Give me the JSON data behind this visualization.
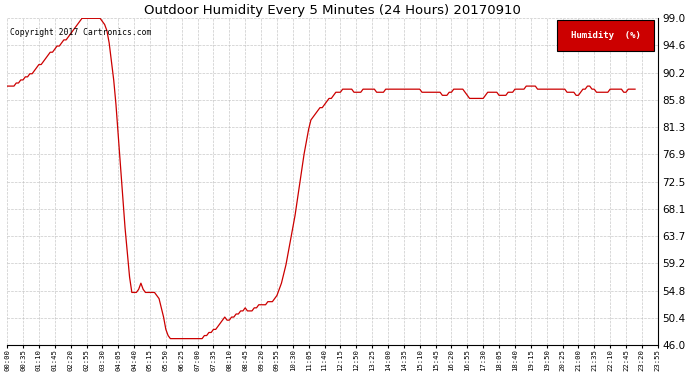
{
  "title": "Outdoor Humidity Every 5 Minutes (24 Hours) 20170910",
  "copyright_text": "Copyright 2017 Cartronics.com",
  "legend_label": "Humidity  (%)",
  "legend_bg": "#cc0000",
  "legend_text_color": "#ffffff",
  "line_color": "#cc0000",
  "bg_color": "#ffffff",
  "grid_color": "#bbbbbb",
  "ylim": [
    46.0,
    99.0
  ],
  "yticks": [
    46.0,
    50.4,
    54.8,
    59.2,
    63.7,
    68.1,
    72.5,
    76.9,
    81.3,
    85.8,
    90.2,
    94.6,
    99.0
  ],
  "xtick_labels": [
    "00:00",
    "00:35",
    "01:10",
    "01:45",
    "02:20",
    "02:55",
    "03:30",
    "04:05",
    "04:40",
    "05:15",
    "05:50",
    "06:25",
    "07:00",
    "07:35",
    "08:10",
    "08:45",
    "09:20",
    "09:55",
    "10:30",
    "11:05",
    "11:40",
    "12:15",
    "12:50",
    "13:25",
    "14:00",
    "14:35",
    "15:10",
    "15:45",
    "16:20",
    "16:55",
    "17:30",
    "18:05",
    "18:40",
    "19:15",
    "19:50",
    "20:25",
    "21:00",
    "21:35",
    "22:10",
    "22:45",
    "23:20",
    "23:55"
  ],
  "humidity_values": [
    88.0,
    88.0,
    88.0,
    88.0,
    88.5,
    88.5,
    89.0,
    89.0,
    89.5,
    89.5,
    90.0,
    90.0,
    90.5,
    91.0,
    91.5,
    91.5,
    92.0,
    92.5,
    93.0,
    93.5,
    93.5,
    94.0,
    94.5,
    94.5,
    95.0,
    95.5,
    95.5,
    96.0,
    96.5,
    97.0,
    97.5,
    98.0,
    98.5,
    99.0,
    99.0,
    99.0,
    99.0,
    99.0,
    99.0,
    99.0,
    99.0,
    99.0,
    98.5,
    98.0,
    97.0,
    95.0,
    92.0,
    89.0,
    85.0,
    80.0,
    75.0,
    70.0,
    65.0,
    61.0,
    57.0,
    54.5,
    54.5,
    54.5,
    55.0,
    56.0,
    55.0,
    54.5,
    54.5,
    54.5,
    54.5,
    54.5,
    54.0,
    53.5,
    52.0,
    50.5,
    48.5,
    47.5,
    47.0,
    47.0,
    47.0,
    47.0,
    47.0,
    47.0,
    47.0,
    47.0,
    47.0,
    47.0,
    47.0,
    47.0,
    47.0,
    47.0,
    47.0,
    47.5,
    47.5,
    48.0,
    48.0,
    48.5,
    48.5,
    49.0,
    49.5,
    50.0,
    50.5,
    50.0,
    50.0,
    50.5,
    50.5,
    51.0,
    51.0,
    51.5,
    51.5,
    52.0,
    51.5,
    51.5,
    51.5,
    52.0,
    52.0,
    52.5,
    52.5,
    52.5,
    52.5,
    53.0,
    53.0,
    53.0,
    53.5,
    54.0,
    55.0,
    56.0,
    57.5,
    59.0,
    61.0,
    63.0,
    65.0,
    67.0,
    69.5,
    72.0,
    74.5,
    77.0,
    79.0,
    81.0,
    82.5,
    83.0,
    83.5,
    84.0,
    84.5,
    84.5,
    85.0,
    85.5,
    86.0,
    86.0,
    86.5,
    87.0,
    87.0,
    87.0,
    87.5,
    87.5,
    87.5,
    87.5,
    87.5,
    87.0,
    87.0,
    87.0,
    87.0,
    87.5,
    87.5,
    87.5,
    87.5,
    87.5,
    87.5,
    87.0,
    87.0,
    87.0,
    87.0,
    87.5,
    87.5,
    87.5,
    87.5,
    87.5,
    87.5,
    87.5,
    87.5,
    87.5,
    87.5,
    87.5,
    87.5,
    87.5,
    87.5,
    87.5,
    87.5,
    87.0,
    87.0,
    87.0,
    87.0,
    87.0,
    87.0,
    87.0,
    87.0,
    87.0,
    86.5,
    86.5,
    86.5,
    87.0,
    87.0,
    87.5,
    87.5,
    87.5,
    87.5,
    87.5,
    87.0,
    86.5,
    86.0,
    86.0,
    86.0,
    86.0,
    86.0,
    86.0,
    86.0,
    86.5,
    87.0,
    87.0,
    87.0,
    87.0,
    87.0,
    86.5,
    86.5,
    86.5,
    86.5,
    87.0,
    87.0,
    87.0,
    87.5,
    87.5,
    87.5,
    87.5,
    87.5,
    88.0,
    88.0,
    88.0,
    88.0,
    88.0,
    87.5,
    87.5,
    87.5,
    87.5,
    87.5,
    87.5,
    87.5,
    87.5,
    87.5,
    87.5,
    87.5,
    87.5,
    87.5,
    87.0,
    87.0,
    87.0,
    87.0,
    86.5,
    86.5,
    87.0,
    87.5,
    87.5,
    88.0,
    88.0,
    87.5,
    87.5,
    87.0,
    87.0,
    87.0,
    87.0,
    87.0,
    87.0,
    87.5,
    87.5,
    87.5,
    87.5,
    87.5,
    87.5,
    87.0,
    87.0,
    87.5,
    87.5,
    87.5,
    87.5
  ]
}
